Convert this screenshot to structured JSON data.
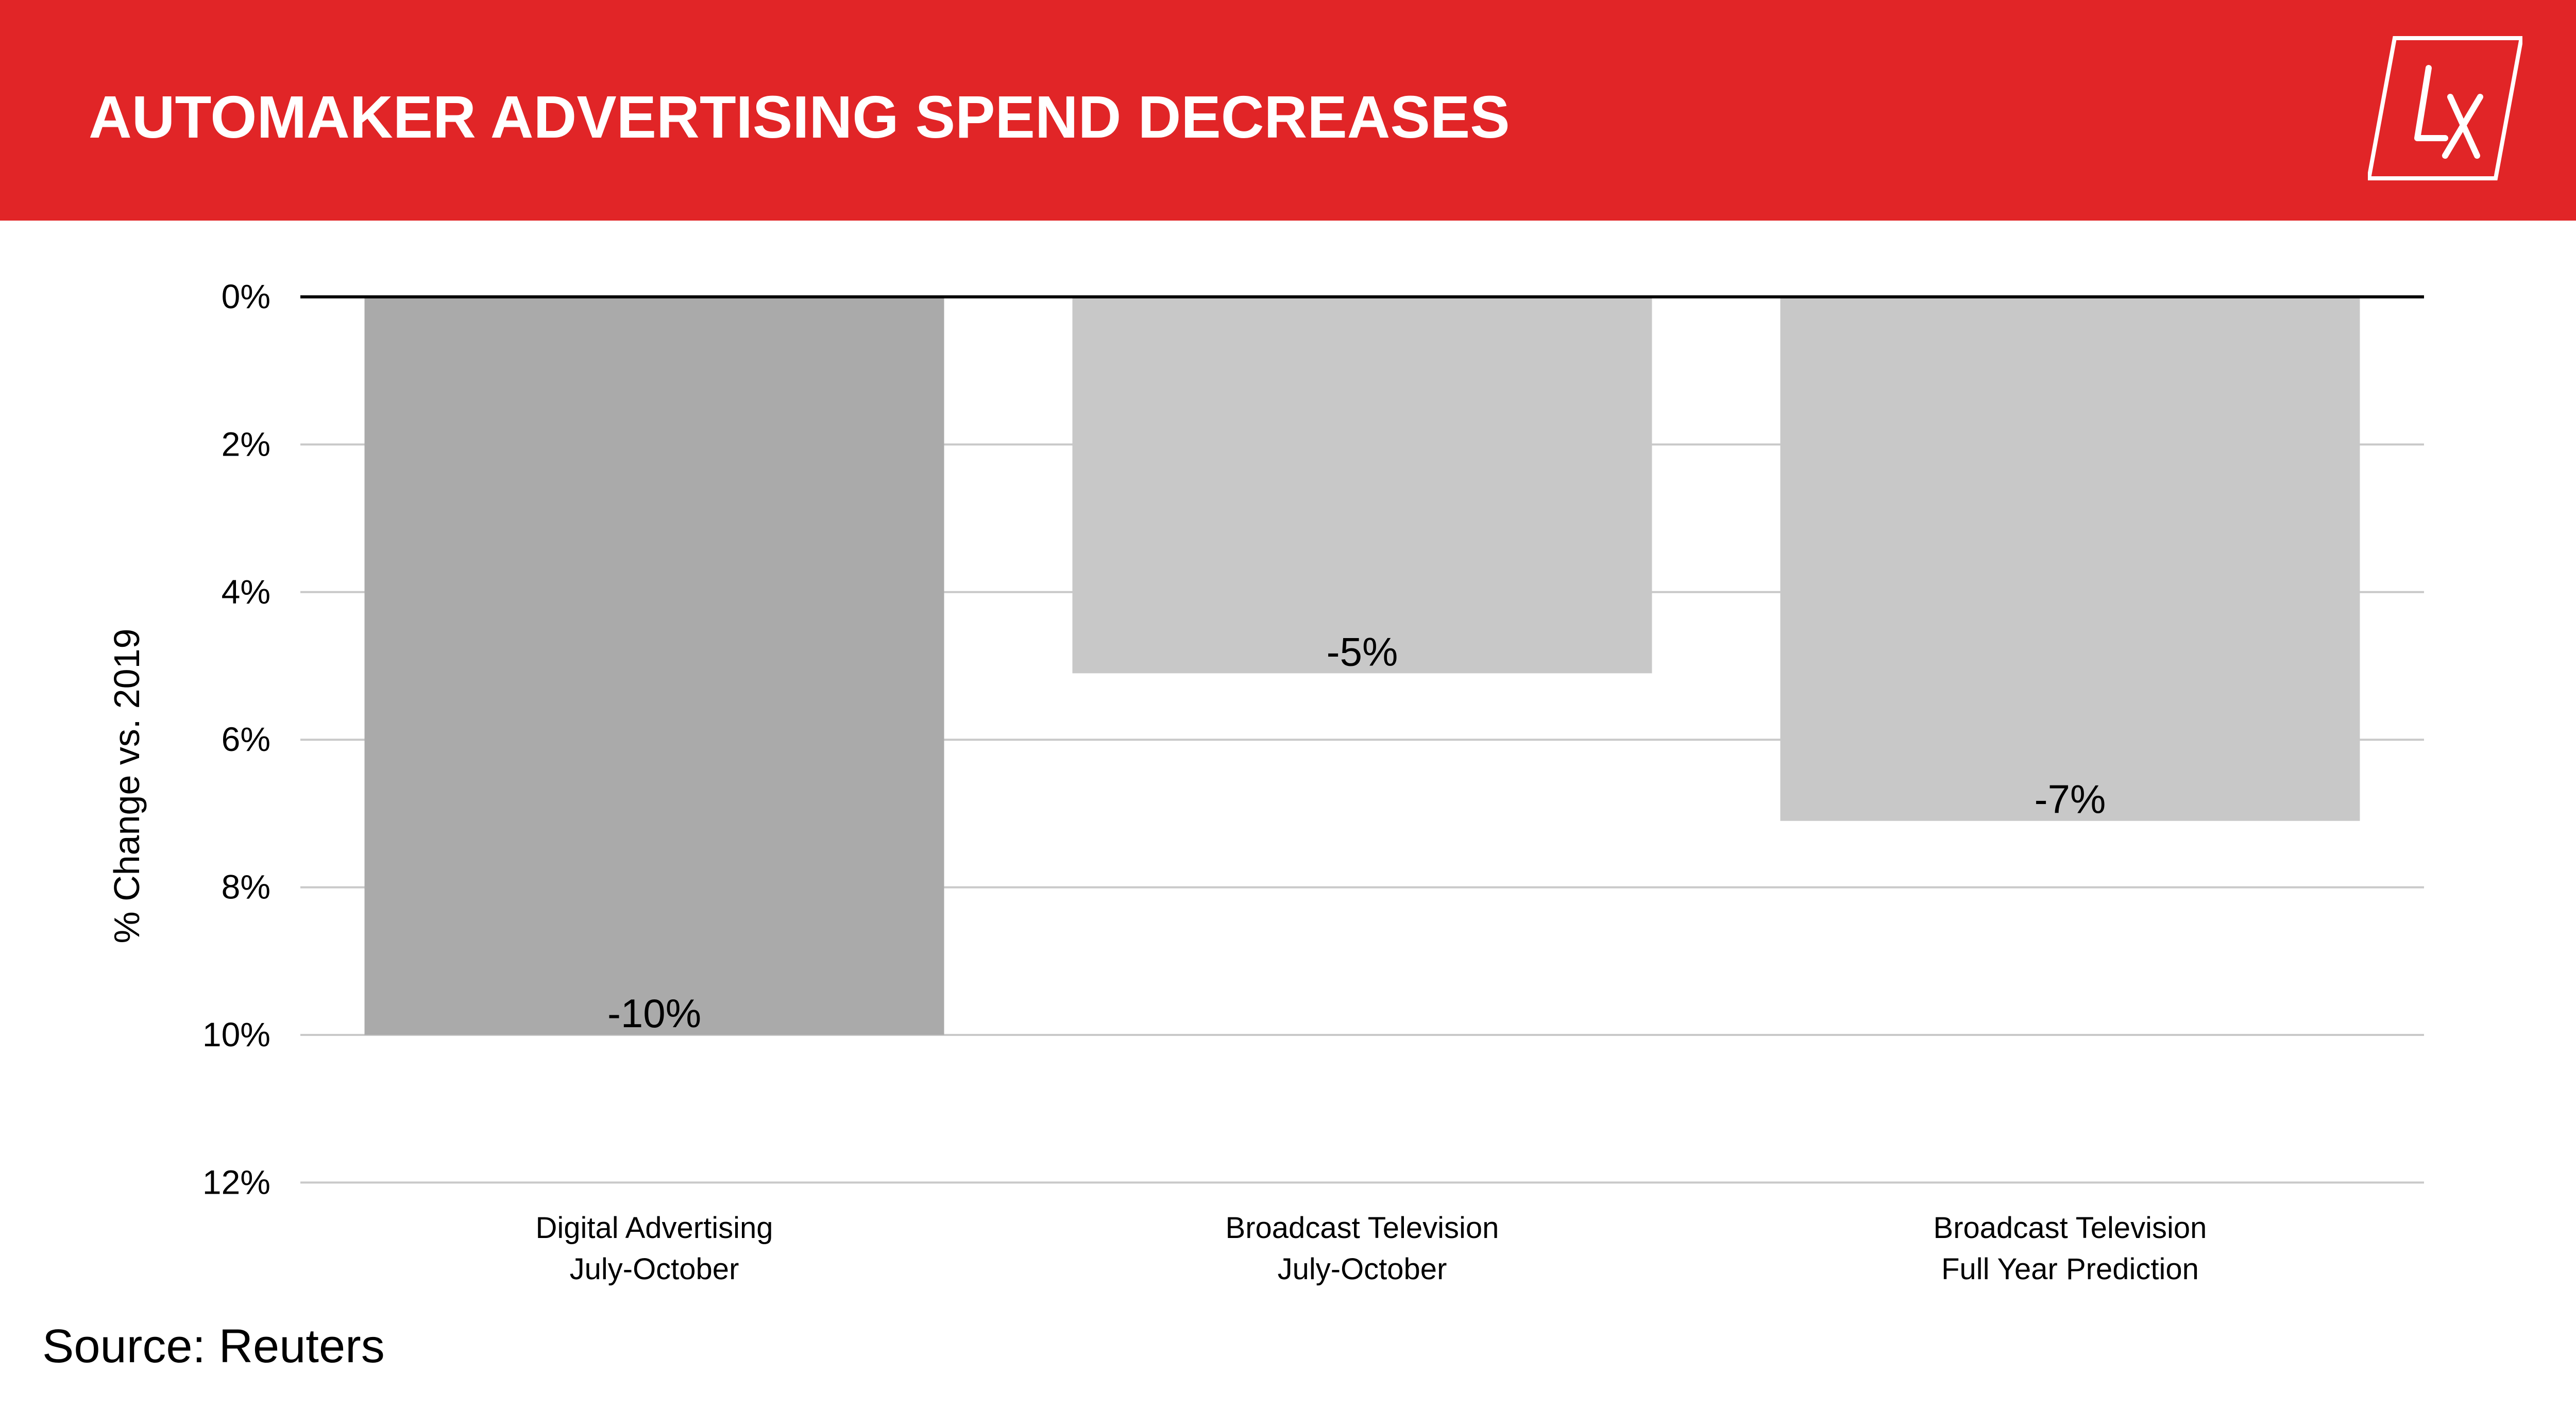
{
  "header": {
    "title": "AUTOMAKER ADVERTISING SPEND DECREASES",
    "logo_text": "LX",
    "background_color": "#e12527"
  },
  "chart_data": {
    "type": "bar",
    "title": "AUTOMAKER ADVERTISING SPEND DECREASES",
    "xlabel": "",
    "ylabel": "% Change vs. 2019",
    "categories": [
      [
        "Digital Advertising",
        "July-October"
      ],
      [
        "Broadcast Television",
        "July-October"
      ],
      [
        "Broadcast Television",
        "Full Year Prediction"
      ]
    ],
    "values": [
      -10,
      -5.1,
      -7.1
    ],
    "data_labels": [
      "-10%",
      "-5%",
      "-7%"
    ],
    "bar_colors": [
      "#aaaaaa",
      "#c8c8c8",
      "#c8c8c8"
    ],
    "yticks": [
      0,
      2,
      4,
      6,
      8,
      10,
      12
    ],
    "ytick_labels": [
      "0%",
      "2%",
      "4%",
      "6%",
      "8%",
      "10%",
      "12%"
    ],
    "ylim": [
      0,
      -12
    ],
    "y_inverted": true,
    "grid": true,
    "legend": "none"
  },
  "footer": {
    "source": "Source: Reuters"
  }
}
